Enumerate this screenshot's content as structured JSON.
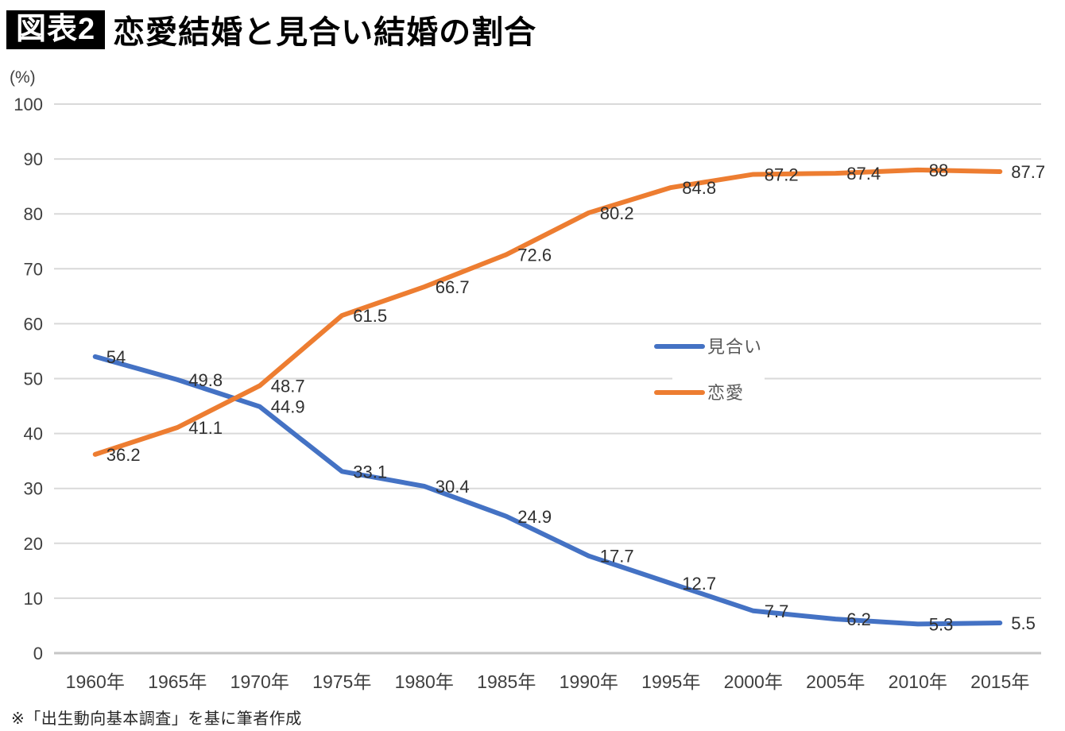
{
  "header": {
    "badge_label": "図表2",
    "title": "恋愛結婚と見合い結婚の割合"
  },
  "y_axis_unit": "(%)",
  "footnote": "※「出生動向基本調査」を基に筆者作成",
  "chart_data": {
    "type": "line",
    "title": "恋愛結婚と見合い結婚の割合",
    "xlabel": "",
    "ylabel": "(%)",
    "categories": [
      "1960年",
      "1965年",
      "1970年",
      "1975年",
      "1980年",
      "1985年",
      "1990年",
      "1995年",
      "2000年",
      "2005年",
      "2010年",
      "2015年"
    ],
    "series": [
      {
        "name": "見合い",
        "color": "#4472C4",
        "values": [
          54,
          49.8,
          44.9,
          33.1,
          30.4,
          24.9,
          17.7,
          12.7,
          7.7,
          6.2,
          5.3,
          5.5
        ]
      },
      {
        "name": "恋愛",
        "color": "#ED7D31",
        "values": [
          36.2,
          41.1,
          48.7,
          61.5,
          66.7,
          72.6,
          80.2,
          84.8,
          87.2,
          87.4,
          88,
          87.7
        ]
      }
    ],
    "ylim": [
      0,
      100
    ],
    "ytick_step": 10,
    "yticks": [
      0,
      10,
      20,
      30,
      40,
      50,
      60,
      70,
      80,
      90,
      100
    ],
    "grid": true,
    "data_labels_position": "right",
    "legend_position": "center-right",
    "colors": {
      "gridline": "#D9D9D9",
      "axis_line": "#C6C6C6",
      "tick_label": "#404040",
      "data_label": "#303030",
      "legend_text": "#595959",
      "legend_background": "#FFFFFF"
    }
  }
}
